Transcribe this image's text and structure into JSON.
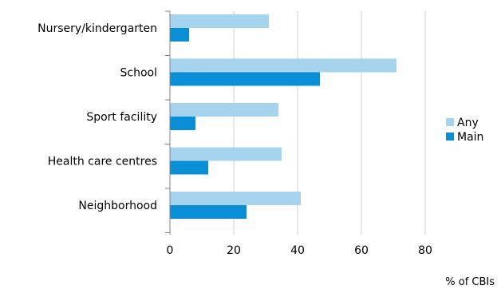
{
  "chart_data": {
    "type": "bar",
    "orientation": "horizontal",
    "categories": [
      "Nursery/kindergarten",
      "School",
      "Sport facility",
      "Health care centres",
      "Neighborhood"
    ],
    "series": [
      {
        "name": "Any",
        "values": [
          31,
          71,
          34,
          35,
          41
        ],
        "color": "#a6d3ee"
      },
      {
        "name": "Main",
        "values": [
          6,
          47,
          8,
          12,
          24
        ],
        "color": "#0a8fd6"
      }
    ],
    "xlim": [
      0,
      80
    ],
    "xticks": [
      0,
      20,
      40,
      60,
      80
    ],
    "xlabel": "% of CBIs",
    "grid": true,
    "legend_position": "right"
  }
}
